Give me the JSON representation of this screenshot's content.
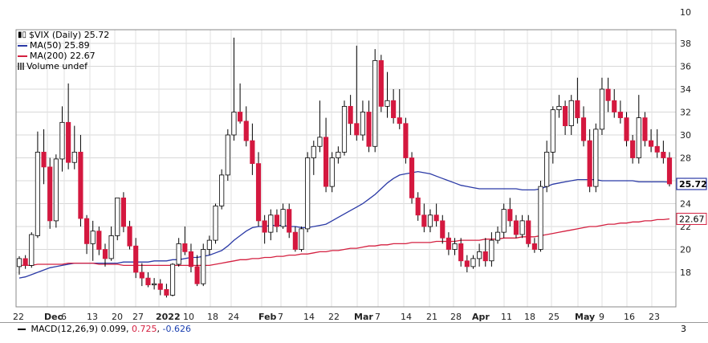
{
  "chart_data": {
    "type": "candlestick",
    "symbol": "$VIX",
    "period": "Daily",
    "last": "25.72",
    "y_ticks": [
      "10",
      "38",
      "36",
      "34",
      "32",
      "30",
      "28",
      "24",
      "22",
      "20",
      "18"
    ],
    "ylim": [
      15.5,
      39.5
    ],
    "x_ticks": [
      "22",
      "Dec",
      "6",
      "13",
      "20",
      "27",
      "2022",
      "10",
      "18",
      "24",
      "Feb",
      "7",
      "14",
      "22",
      "Mar",
      "7",
      "14",
      "21",
      "28",
      "Apr",
      "11",
      "18",
      "25",
      "May",
      "9",
      "16",
      "23"
    ],
    "candles": [
      [
        18.5,
        19.4,
        17.8,
        19.2
      ],
      [
        19.2,
        19.5,
        18.3,
        18.6
      ],
      [
        18.6,
        21.5,
        18.4,
        21.3
      ],
      [
        21.2,
        30.3,
        21.0,
        28.5
      ],
      [
        28.5,
        30.5,
        25.7,
        27.2
      ],
      [
        27.2,
        28.0,
        21.8,
        22.5
      ],
      [
        22.5,
        28.3,
        21.9,
        27.9
      ],
      [
        27.9,
        32.5,
        26.8,
        31.1
      ],
      [
        31.1,
        34.5,
        27.0,
        27.6
      ],
      [
        27.6,
        30.8,
        27.0,
        28.5
      ],
      [
        28.5,
        30.0,
        22.0,
        22.7
      ],
      [
        22.7,
        23.0,
        19.6,
        20.5
      ],
      [
        20.5,
        22.5,
        19.0,
        21.6
      ],
      [
        21.6,
        22.0,
        19.5,
        20.0
      ],
      [
        20.0,
        20.5,
        18.5,
        19.2
      ],
      [
        19.2,
        22.0,
        19.0,
        21.2
      ],
      [
        21.2,
        24.5,
        20.8,
        24.5
      ],
      [
        24.5,
        25.0,
        21.5,
        22.0
      ],
      [
        22.0,
        22.5,
        20.0,
        20.3
      ],
      [
        20.3,
        21.0,
        17.5,
        18.0
      ],
      [
        18.0,
        18.8,
        16.8,
        17.5
      ],
      [
        17.5,
        18.0,
        16.7,
        16.9
      ],
      [
        16.9,
        17.5,
        16.5,
        17.0
      ],
      [
        17.0,
        17.4,
        16.0,
        16.5
      ],
      [
        16.5,
        17.0,
        15.8,
        16.0
      ],
      [
        16.0,
        18.8,
        15.9,
        18.7
      ],
      [
        18.7,
        21.0,
        18.5,
        20.5
      ],
      [
        20.5,
        22.0,
        19.5,
        19.8
      ],
      [
        19.8,
        20.5,
        18.0,
        18.5
      ],
      [
        18.5,
        19.5,
        16.8,
        17.0
      ],
      [
        17.0,
        20.5,
        16.8,
        20.0
      ],
      [
        20.0,
        21.2,
        19.5,
        20.8
      ],
      [
        20.8,
        24.0,
        20.5,
        23.8
      ],
      [
        23.8,
        27.0,
        23.5,
        26.5
      ],
      [
        26.5,
        30.5,
        26.0,
        30.0
      ],
      [
        30.0,
        38.5,
        29.5,
        32.0
      ],
      [
        32.0,
        34.5,
        31.0,
        31.2
      ],
      [
        31.2,
        32.5,
        29.0,
        29.5
      ],
      [
        29.5,
        31.0,
        26.5,
        27.5
      ],
      [
        27.5,
        28.5,
        22.0,
        22.5
      ],
      [
        22.5,
        23.0,
        20.5,
        21.5
      ],
      [
        21.5,
        23.5,
        20.8,
        23.0
      ],
      [
        23.0,
        23.5,
        21.5,
        22.0
      ],
      [
        22.0,
        24.0,
        21.8,
        23.5
      ],
      [
        23.5,
        24.0,
        21.0,
        21.5
      ],
      [
        21.5,
        22.0,
        19.8,
        20.0
      ],
      [
        20.0,
        22.0,
        19.8,
        21.8
      ],
      [
        21.8,
        28.5,
        21.5,
        28.0
      ],
      [
        28.0,
        29.5,
        26.5,
        29.0
      ],
      [
        29.0,
        33.0,
        28.5,
        29.8
      ],
      [
        29.8,
        31.5,
        25.0,
        25.5
      ],
      [
        25.5,
        28.5,
        25.0,
        28.0
      ],
      [
        28.0,
        29.0,
        27.5,
        28.5
      ],
      [
        28.5,
        33.0,
        28.2,
        32.5
      ],
      [
        32.5,
        33.5,
        30.0,
        31.0
      ],
      [
        31.0,
        37.8,
        29.5,
        30.0
      ],
      [
        30.0,
        33.0,
        29.5,
        32.0
      ],
      [
        32.0,
        33.0,
        28.5,
        29.0
      ],
      [
        29.0,
        37.5,
        28.5,
        36.5
      ],
      [
        36.5,
        37.0,
        32.0,
        32.5
      ],
      [
        32.5,
        35.5,
        31.5,
        33.0
      ],
      [
        33.0,
        34.0,
        31.0,
        31.5
      ],
      [
        31.5,
        34.0,
        30.5,
        31.0
      ],
      [
        31.0,
        31.5,
        27.5,
        28.0
      ],
      [
        28.0,
        28.5,
        24.0,
        24.5
      ],
      [
        24.5,
        25.0,
        22.5,
        23.0
      ],
      [
        23.0,
        24.0,
        21.5,
        22.0
      ],
      [
        22.0,
        23.5,
        21.5,
        23.0
      ],
      [
        23.0,
        24.0,
        22.0,
        22.5
      ],
      [
        22.5,
        23.0,
        20.5,
        21.0
      ],
      [
        21.0,
        21.5,
        19.5,
        20.0
      ],
      [
        20.0,
        21.0,
        19.5,
        20.5
      ],
      [
        20.5,
        21.0,
        18.5,
        19.0
      ],
      [
        19.0,
        19.5,
        18.0,
        18.5
      ],
      [
        18.5,
        19.5,
        18.3,
        19.2
      ],
      [
        19.2,
        20.5,
        18.5,
        19.8
      ],
      [
        19.8,
        21.0,
        18.5,
        19.0
      ],
      [
        19.0,
        21.5,
        18.5,
        20.8
      ],
      [
        20.8,
        22.0,
        20.5,
        21.5
      ],
      [
        21.5,
        24.0,
        21.0,
        23.5
      ],
      [
        23.5,
        24.5,
        22.0,
        22.5
      ],
      [
        22.5,
        23.0,
        21.0,
        21.3
      ],
      [
        21.3,
        23.0,
        21.0,
        22.5
      ],
      [
        22.5,
        23.0,
        20.2,
        20.5
      ],
      [
        20.5,
        21.0,
        19.7,
        20.0
      ],
      [
        20.0,
        26.0,
        19.8,
        25.5
      ],
      [
        25.5,
        29.5,
        25.0,
        28.5
      ],
      [
        28.5,
        32.5,
        27.5,
        32.2
      ],
      [
        32.2,
        33.5,
        31.5,
        32.5
      ],
      [
        32.5,
        33.0,
        30.0,
        30.8
      ],
      [
        30.8,
        33.5,
        30.0,
        33.0
      ],
      [
        33.0,
        35.0,
        31.0,
        31.5
      ],
      [
        31.5,
        32.5,
        29.0,
        29.5
      ],
      [
        29.5,
        30.5,
        25.0,
        25.5
      ],
      [
        25.5,
        31.0,
        25.0,
        30.5
      ],
      [
        30.5,
        35.0,
        30.0,
        34.0
      ],
      [
        34.0,
        35.0,
        32.0,
        33.0
      ],
      [
        33.0,
        34.0,
        31.5,
        32.0
      ],
      [
        32.0,
        33.0,
        31.0,
        31.5
      ],
      [
        31.5,
        32.0,
        29.0,
        29.5
      ],
      [
        29.5,
        30.0,
        27.5,
        28.0
      ],
      [
        28.0,
        33.5,
        27.5,
        31.5
      ],
      [
        31.5,
        32.0,
        29.0,
        29.5
      ],
      [
        29.5,
        30.5,
        28.5,
        29.0
      ],
      [
        29.0,
        30.5,
        28.0,
        28.5
      ],
      [
        28.5,
        29.5,
        27.5,
        28.0
      ],
      [
        28.0,
        28.5,
        25.5,
        25.72
      ]
    ],
    "series": [
      {
        "name": "MA(50) 25.89",
        "color": "#2b3aa6",
        "values": [
          17.5,
          17.6,
          17.8,
          18.0,
          18.2,
          18.4,
          18.5,
          18.6,
          18.7,
          18.8,
          18.8,
          18.8,
          18.8,
          18.8,
          18.8,
          18.8,
          18.8,
          18.9,
          18.9,
          18.9,
          18.9,
          18.9,
          19.0,
          19.0,
          19.0,
          19.1,
          19.1,
          19.2,
          19.3,
          19.3,
          19.4,
          19.5,
          19.7,
          19.9,
          20.3,
          20.8,
          21.2,
          21.6,
          21.9,
          22.0,
          22.0,
          22.1,
          22.1,
          22.1,
          22.0,
          22.0,
          21.9,
          21.9,
          22.0,
          22.1,
          22.2,
          22.5,
          22.8,
          23.1,
          23.4,
          23.7,
          24.0,
          24.4,
          24.8,
          25.3,
          25.8,
          26.2,
          26.5,
          26.6,
          26.7,
          26.8,
          26.7,
          26.6,
          26.4,
          26.2,
          26.0,
          25.8,
          25.6,
          25.5,
          25.4,
          25.3,
          25.3,
          25.3,
          25.3,
          25.3,
          25.3,
          25.3,
          25.2,
          25.2,
          25.2,
          25.3,
          25.5,
          25.7,
          25.8,
          25.9,
          26.0,
          26.1,
          26.1,
          26.1,
          26.1,
          26.0,
          26.0,
          26.0,
          26.0,
          26.0,
          26.0,
          25.9,
          25.9,
          25.9,
          25.9,
          25.9,
          25.89
        ]
      },
      {
        "name": "MA(200) 22.67",
        "color": "#d42040",
        "values": [
          18.6,
          18.6,
          18.6,
          18.7,
          18.7,
          18.7,
          18.7,
          18.7,
          18.8,
          18.8,
          18.8,
          18.8,
          18.8,
          18.7,
          18.7,
          18.7,
          18.7,
          18.6,
          18.6,
          18.6,
          18.6,
          18.6,
          18.6,
          18.6,
          18.6,
          18.6,
          18.6,
          18.6,
          18.6,
          18.6,
          18.6,
          18.6,
          18.7,
          18.8,
          18.9,
          19.0,
          19.1,
          19.1,
          19.2,
          19.2,
          19.3,
          19.3,
          19.4,
          19.4,
          19.5,
          19.5,
          19.6,
          19.6,
          19.7,
          19.8,
          19.8,
          19.9,
          19.9,
          20.0,
          20.1,
          20.1,
          20.2,
          20.3,
          20.3,
          20.4,
          20.4,
          20.5,
          20.5,
          20.5,
          20.6,
          20.6,
          20.6,
          20.6,
          20.7,
          20.7,
          20.7,
          20.7,
          20.8,
          20.8,
          20.8,
          20.8,
          20.9,
          20.9,
          20.9,
          21.0,
          21.0,
          21.0,
          21.1,
          21.1,
          21.1,
          21.2,
          21.3,
          21.4,
          21.5,
          21.6,
          21.7,
          21.8,
          21.9,
          22.0,
          22.0,
          22.1,
          22.2,
          22.2,
          22.3,
          22.3,
          22.4,
          22.4,
          22.5,
          22.5,
          22.6,
          22.6,
          22.67
        ]
      }
    ],
    "value_labels": {
      "last": "25.72",
      "ma200": "22.67"
    }
  },
  "legend": {
    "title": "$VIX (Daily) 25.72",
    "ma50": "MA(50) 25.89",
    "ma200": "MA(200) 22.67",
    "volume": "Volume undef"
  },
  "macd": {
    "label": "MACD(12,26,9)",
    "v1": "0.099",
    "v2": "0.725",
    "v3": "-0.626",
    "axis_value": "3",
    "v1_color": "#000000",
    "v2_color": "#d42040",
    "v3_color": "#1a3fb0"
  },
  "colors": {
    "up": "#ffffff",
    "down": "#d4183f",
    "grid": "#d8d8d8"
  }
}
